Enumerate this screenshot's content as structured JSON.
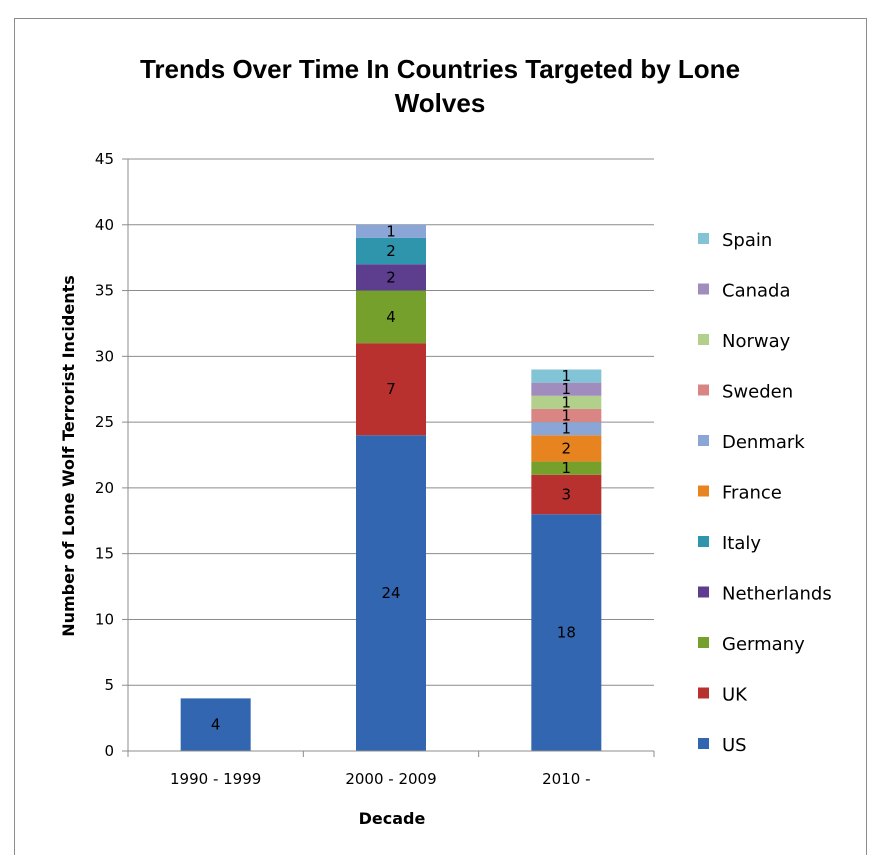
{
  "chart_data": {
    "type": "bar",
    "stacked": true,
    "title": "Trends Over Time In Countries Targeted by Lone Wolves",
    "title_lines": [
      "Trends Over Time In Countries Targeted by Lone",
      "Wolves"
    ],
    "xlabel": "Decade",
    "ylabel": "Number of Lone Wolf Terrorist Incidents",
    "categories": [
      "1990 - 1999",
      "2000 - 2009",
      "2010 -"
    ],
    "ylim": [
      0,
      45
    ],
    "yticks": [
      0,
      5,
      10,
      15,
      20,
      25,
      30,
      35,
      40,
      45
    ],
    "grid": true,
    "legend_position": "right",
    "series": [
      {
        "name": "US",
        "color": "#3366b0",
        "values": [
          4,
          24,
          18
        ]
      },
      {
        "name": "UK",
        "color": "#b8312f",
        "values": [
          0,
          7,
          3
        ]
      },
      {
        "name": "Germany",
        "color": "#76a02c",
        "values": [
          0,
          4,
          1
        ]
      },
      {
        "name": "Netherlands",
        "color": "#5c3d8e",
        "values": [
          0,
          2,
          0
        ]
      },
      {
        "name": "Italy",
        "color": "#2f95ad",
        "values": [
          0,
          2,
          0
        ]
      },
      {
        "name": "France",
        "color": "#e8841f",
        "values": [
          0,
          0,
          2
        ]
      },
      {
        "name": "Denmark",
        "color": "#8aa6d6",
        "values": [
          0,
          1,
          1
        ]
      },
      {
        "name": "Sweden",
        "color": "#d98583",
        "values": [
          0,
          0,
          1
        ]
      },
      {
        "name": "Norway",
        "color": "#b3cf8c",
        "values": [
          0,
          0,
          1
        ]
      },
      {
        "name": "Canada",
        "color": "#a08cbd",
        "values": [
          0,
          0,
          1
        ]
      },
      {
        "name": "Spain",
        "color": "#82c3d6",
        "values": [
          0,
          0,
          1
        ]
      }
    ]
  }
}
